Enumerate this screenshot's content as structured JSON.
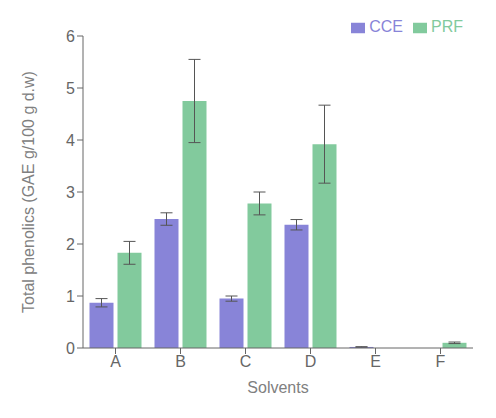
{
  "chart_data": {
    "type": "bar",
    "categories": [
      "A",
      "B",
      "C",
      "D",
      "E",
      "F"
    ],
    "series": [
      {
        "name": "CCE",
        "color": "#8884d8",
        "values": [
          0.87,
          2.48,
          0.95,
          2.37,
          0.02,
          0.0
        ],
        "errors": [
          0.08,
          0.12,
          0.05,
          0.1,
          0.005,
          0.0
        ]
      },
      {
        "name": "PRF",
        "color": "#82ca9d",
        "values": [
          1.83,
          4.75,
          2.78,
          3.92,
          0.0,
          0.1
        ],
        "errors": [
          0.22,
          0.8,
          0.22,
          0.75,
          0.005,
          0.015
        ]
      }
    ],
    "xlabel": "Solvents",
    "ylabel": "Total phenolics (GAE g/100 g d.w)",
    "ylim": [
      0,
      6
    ],
    "yticks": [
      0,
      1,
      2,
      3,
      4,
      5,
      6
    ],
    "grid": false,
    "legend": "upper right"
  }
}
